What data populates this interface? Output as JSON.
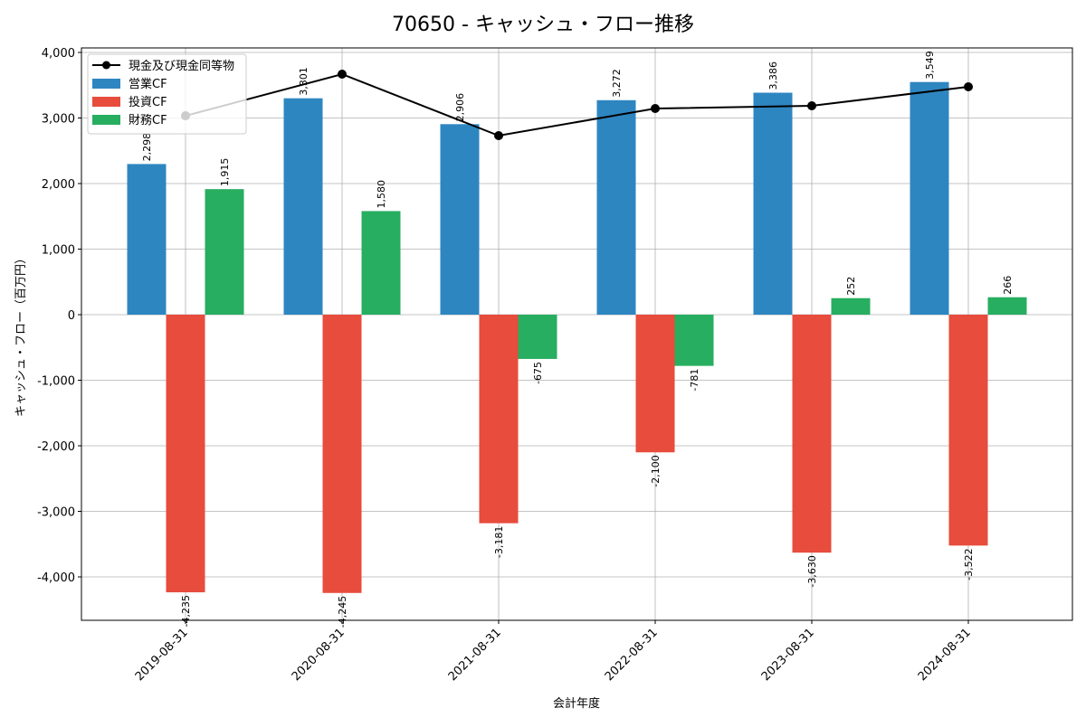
{
  "chart_data": {
    "type": "bar",
    "title": "70650 - キャッシュ・フロー推移",
    "xlabel": "会計年度",
    "ylabel": "キャッシュ・フロー（百万円）",
    "ylim": [
      -4662,
      4069
    ],
    "yticks": [
      -4000,
      -3000,
      -2000,
      -1000,
      0,
      1000,
      2000,
      3000,
      4000
    ],
    "ytick_labels": [
      "-4,000",
      "-3,000",
      "-2,000",
      "-1,000",
      "0",
      "1,000",
      "2,000",
      "3,000",
      "4,000"
    ],
    "grid": true,
    "legend_position": "top-left",
    "categories": [
      "2019-08-31",
      "2020-08-31",
      "2021-08-31",
      "2022-08-31",
      "2023-08-31",
      "2024-08-31"
    ],
    "series": [
      {
        "name": "営業CF",
        "type": "bar",
        "color": "#2e86c1",
        "values": [
          2298,
          3301,
          2906,
          3272,
          3386,
          3549
        ],
        "labels": [
          "2,298",
          "3,301",
          "2,906",
          "3,272",
          "3,386",
          "3,549"
        ]
      },
      {
        "name": "投資CF",
        "type": "bar",
        "color": "#e74c3c",
        "values": [
          -4235,
          -4245,
          -3181,
          -2100,
          -3630,
          -3522
        ],
        "labels": [
          "-4,235",
          "-4,245",
          "-3,181",
          "-2,100",
          "-3,630",
          "-3,522"
        ]
      },
      {
        "name": "財務CF",
        "type": "bar",
        "color": "#27ae60",
        "values": [
          1915,
          1580,
          -675,
          -781,
          252,
          266
        ],
        "labels": [
          "1,915",
          "1,580",
          "-675",
          "-781",
          "252",
          "266"
        ]
      },
      {
        "name": "現金及び現金同等物",
        "type": "line",
        "color": "#000000",
        "values": [
          3034,
          3669,
          2731,
          3145,
          3186,
          3476
        ]
      }
    ]
  }
}
